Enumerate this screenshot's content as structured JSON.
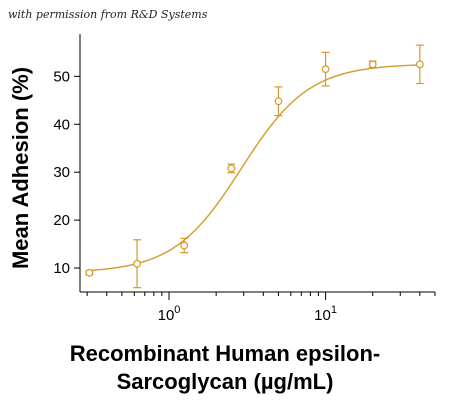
{
  "credit": "with permission from R&D Systems",
  "chart_data": {
    "type": "scatter",
    "ylabel": "Mean Adhesion (%)",
    "xlabel_line1": "Recombinant Human epsilon-",
    "xlabel_line2": "Sarcoglycan (µg/mL)",
    "x_scale": "log",
    "xlim": [
      0.27,
      50
    ],
    "ylim": [
      5,
      58
    ],
    "y_ticks": [
      10,
      20,
      30,
      40,
      50
    ],
    "x_ticks": [
      {
        "value": 1,
        "base": "10",
        "exp": "0"
      },
      {
        "value": 10,
        "base": "10",
        "exp": "1"
      }
    ],
    "grid": false,
    "color": "#D49A2A",
    "points": [
      {
        "x": 0.31,
        "y": 9.0,
        "err": 0.4
      },
      {
        "x": 0.625,
        "y": 10.9,
        "err": 5.0
      },
      {
        "x": 1.25,
        "y": 14.7,
        "err": 1.5
      },
      {
        "x": 2.5,
        "y": 30.8,
        "err": 0.9
      },
      {
        "x": 5.0,
        "y": 44.8,
        "err": 3.0
      },
      {
        "x": 10.0,
        "y": 51.5,
        "err": 3.5
      },
      {
        "x": 20.0,
        "y": 52.5,
        "err": 0.7
      },
      {
        "x": 40.0,
        "y": 52.5,
        "err": 4.0
      }
    ],
    "fit": {
      "bottom": 9.0,
      "top": 52.6,
      "ec50": 2.9,
      "hill": 2.0
    }
  }
}
